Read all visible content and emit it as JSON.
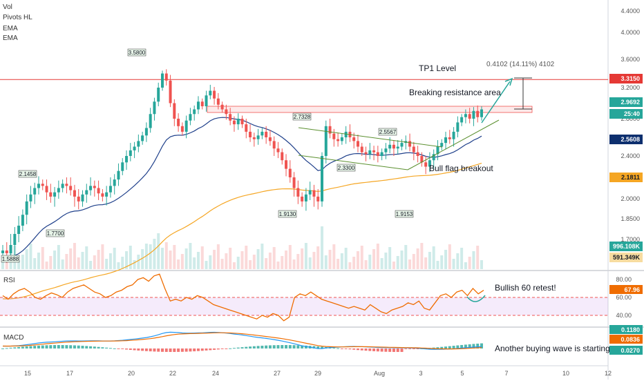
{
  "chart_data": [
    {
      "type": "candlestick",
      "pane": "price",
      "indicators_legend": [
        "Vol",
        "Pivots HL",
        "EMA",
        "EMA"
      ],
      "x_ticks": [
        "15",
        "17",
        "20",
        "22",
        "24",
        "27",
        "29",
        "Aug",
        "3",
        "5",
        "7",
        "10",
        "12"
      ],
      "y_ticks": [
        "4.4000",
        "4.0000",
        "3.6000",
        "3.2000",
        "2.8000",
        "2.4000",
        "2.0000",
        "1.8500",
        "1.7000"
      ],
      "ohlc_path_close": [
        1.62,
        1.6,
        1.66,
        1.74,
        1.8,
        1.88,
        1.98,
        2.04,
        2.1,
        2.14,
        2.12,
        2.06,
        2.02,
        2.06,
        2.1,
        2.14,
        2.12,
        2.08,
        2.02,
        1.98,
        2.04,
        2.08,
        2.12,
        2.1,
        2.05,
        2.02,
        2.06,
        2.12,
        2.18,
        2.26,
        2.34,
        2.4,
        2.46,
        2.5,
        2.56,
        2.62,
        2.7,
        2.86,
        3.02,
        3.2,
        3.4,
        3.3,
        3.0,
        2.8,
        2.72,
        2.66,
        2.78,
        2.86,
        2.92,
        3.02,
        2.96,
        3.1,
        3.16,
        3.06,
        2.98,
        2.92,
        2.86,
        2.78,
        2.74,
        2.8,
        2.74,
        2.66,
        2.6,
        2.58,
        2.62,
        2.66,
        2.6,
        2.56,
        2.48,
        2.44,
        2.36,
        2.28,
        2.2,
        2.1,
        2.02,
        1.98,
        2.04,
        2.08,
        2.02,
        1.98,
        2.4,
        2.72,
        2.64,
        2.58,
        2.56,
        2.6,
        2.66,
        2.6,
        2.56,
        2.5,
        2.44,
        2.42,
        2.46,
        2.44,
        2.4,
        2.44,
        2.48,
        2.52,
        2.48,
        2.5,
        2.54,
        2.56,
        2.5,
        2.44,
        2.4,
        2.34,
        2.3,
        2.36,
        2.42,
        2.5,
        2.54,
        2.6,
        2.58,
        2.66,
        2.76,
        2.82,
        2.86,
        2.8,
        2.9,
        2.82,
        2.92
      ],
      "ema_fast": {
        "name": "EMA",
        "color": "#1e3f8a"
      },
      "ema_slow": {
        "name": "EMA",
        "color": "#f5a623"
      },
      "price_labels": [
        {
          "text": "3.5800"
        },
        {
          "text": "2.1458"
        },
        {
          "text": "1.7700"
        },
        {
          "text": "1.5888"
        },
        {
          "text": "2.7328"
        },
        {
          "text": "2.3300"
        },
        {
          "text": "2.5567"
        },
        {
          "text": "1.9130"
        },
        {
          "text": "1.9153"
        }
      ],
      "axis_badges": [
        {
          "text": "3.3150",
          "bg": "#e53935",
          "fg": "#ffffff"
        },
        {
          "text": "2.9692",
          "bg": "#26a69a",
          "fg": "#ffffff"
        },
        {
          "text": "25:40",
          "bg": "#26a69a",
          "fg": "#ffffff"
        },
        {
          "text": "2.5608",
          "bg": "#0d2f6e",
          "fg": "#ffffff"
        },
        {
          "text": "2.1811",
          "bg": "#f5a623",
          "fg": "#131722"
        },
        {
          "text": "996.108K",
          "bg": "#26a69a",
          "fg": "#ffffff"
        },
        {
          "text": "591.349K",
          "bg": "#f7dca0",
          "fg": "#131722"
        }
      ],
      "annotations": {
        "tp1": "TP1 Level",
        "measure": "0.4102 (14.11%) 4102",
        "breaking": "Breaking resistance area",
        "bull_flag": "Bull flag breakout"
      },
      "levels": {
        "resistance": 3.315,
        "zone_low": 2.88,
        "zone_high": 2.96
      },
      "colors": {
        "up": "#26a69a",
        "down": "#ef5350",
        "resistance": "#e53935",
        "channel": "#5a8f2e"
      }
    },
    {
      "type": "line",
      "pane": "RSI",
      "title": "RSI",
      "y_ticks": [
        "80.00",
        "60.00",
        "40.00"
      ],
      "band": [
        40,
        60
      ],
      "values": [
        62,
        58,
        64,
        68,
        70,
        66,
        60,
        58,
        62,
        65,
        63,
        60,
        66,
        70,
        72,
        74,
        70,
        66,
        64,
        60,
        62,
        66,
        68,
        72,
        74,
        80,
        82,
        78,
        84,
        86,
        70,
        56,
        58,
        56,
        60,
        58,
        62,
        60,
        56,
        52,
        50,
        48,
        46,
        44,
        42,
        40,
        38,
        36,
        40,
        38,
        42,
        40,
        34,
        38,
        60,
        64,
        62,
        66,
        62,
        58,
        56,
        54,
        52,
        50,
        48,
        50,
        48,
        46,
        52,
        48,
        44,
        42,
        46,
        48,
        50,
        54,
        52,
        56,
        48,
        46,
        54,
        62,
        64,
        60,
        66,
        68,
        62,
        70,
        64,
        68
      ],
      "badge": {
        "text": "67.96",
        "bg": "#ef6c00"
      },
      "annotation": "Bullish 60 retest!",
      "line_color": "#ef6c00"
    },
    {
      "type": "histogram+line",
      "pane": "MACD",
      "title": "MACD",
      "badges": [
        {
          "text": "0.1180",
          "bg": "#26a69a"
        },
        {
          "text": "0.0836",
          "bg": "#ef6c00"
        },
        {
          "text": "0.0270",
          "bg": "#26a69a"
        }
      ],
      "annotation": "Another buying wave is starting..",
      "macd_color": "#2196f3",
      "signal_color": "#ef6c00"
    }
  ]
}
